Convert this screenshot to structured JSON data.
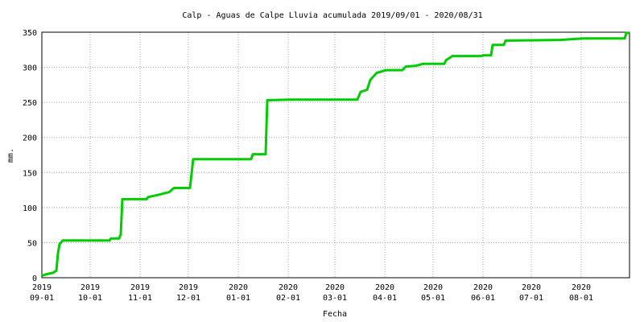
{
  "chart_data": {
    "type": "line",
    "title": "Calp - Aguas de Calpe Lluvia acumulada 2019/09/01 - 2020/08/31",
    "x_label": "Fecha",
    "y_label": "mm.",
    "x": [
      "2019-09-01",
      "2019-09-04",
      "2019-09-08",
      "2019-09-10",
      "2019-09-11",
      "2019-09-12",
      "2019-09-14",
      "2019-10-13",
      "2019-10-14",
      "2019-10-19",
      "2019-10-20",
      "2019-10-21",
      "2019-11-05",
      "2019-11-06",
      "2019-11-12",
      "2019-11-19",
      "2019-11-22",
      "2019-12-02",
      "2019-12-04",
      "2020-01-09",
      "2020-01-10",
      "2020-01-18",
      "2020-01-19",
      "2020-02-03",
      "2020-03-15",
      "2020-03-17",
      "2020-03-21",
      "2020-03-23",
      "2020-03-27",
      "2020-04-02",
      "2020-04-12",
      "2020-04-14",
      "2020-04-20",
      "2020-04-25",
      "2020-05-08",
      "2020-05-09",
      "2020-05-13",
      "2020-05-31",
      "2020-06-01",
      "2020-06-06",
      "2020-06-07",
      "2020-06-14",
      "2020-06-15",
      "2020-07-19",
      "2020-08-02",
      "2020-08-28",
      "2020-08-29",
      "2020-08-31"
    ],
    "series": [
      {
        "name": "Lluvia acumulada",
        "color": "#00cc00",
        "values": [
          3,
          5,
          7,
          10,
          35,
          48,
          53,
          53,
          56,
          56,
          62,
          112,
          112,
          115,
          118,
          122,
          128,
          128,
          169,
          169,
          176,
          176,
          253,
          254,
          254,
          265,
          268,
          282,
          292,
          296,
          296,
          301,
          302,
          305,
          305,
          310,
          316,
          316,
          317,
          317,
          332,
          332,
          338,
          339,
          341,
          341,
          349,
          349
        ]
      }
    ],
    "xlim": [
      "2019-09-01",
      "2020-08-31"
    ],
    "xticks": [
      {
        "value": "2019-09-01",
        "label": [
          "2019",
          "09-01"
        ]
      },
      {
        "value": "2019-10-01",
        "label": [
          "2019",
          "10-01"
        ]
      },
      {
        "value": "2019-11-01",
        "label": [
          "2019",
          "11-01"
        ]
      },
      {
        "value": "2019-12-01",
        "label": [
          "2019",
          "12-01"
        ]
      },
      {
        "value": "2020-01-01",
        "label": [
          "2020",
          "01-01"
        ]
      },
      {
        "value": "2020-02-01",
        "label": [
          "2020",
          "02-01"
        ]
      },
      {
        "value": "2020-03-01",
        "label": [
          "2020",
          "03-01"
        ]
      },
      {
        "value": "2020-04-01",
        "label": [
          "2020",
          "04-01"
        ]
      },
      {
        "value": "2020-05-01",
        "label": [
          "2020",
          "05-01"
        ]
      },
      {
        "value": "2020-06-01",
        "label": [
          "2020",
          "06-01"
        ]
      },
      {
        "value": "2020-07-01",
        "label": [
          "2020",
          "07-01"
        ]
      },
      {
        "value": "2020-08-01",
        "label": [
          "2020",
          "08-01"
        ]
      }
    ],
    "ylim": [
      0,
      350
    ],
    "yticks": [
      0,
      50,
      100,
      150,
      200,
      250,
      300,
      350
    ],
    "grid": true
  }
}
